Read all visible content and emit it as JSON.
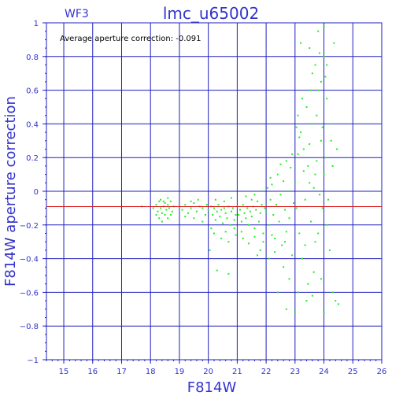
{
  "header": {
    "camera": "WF3",
    "dataset": "lmc_u65002"
  },
  "annotation": "Average aperture correction: -0.091",
  "colors": {
    "frame": "#1f1fbf",
    "points": "#22ee22",
    "mean_line": "#dd1111",
    "text": "#3333cc"
  },
  "chart_data": {
    "type": "scatter",
    "title": "lmc_u65002",
    "xlabel": "F814W",
    "ylabel": "F814W aperture correction",
    "xlim": [
      14.4,
      26
    ],
    "ylim": [
      -1,
      1
    ],
    "x_ticks": [
      15,
      16,
      17,
      18,
      19,
      20,
      21,
      22,
      23,
      24,
      25,
      26
    ],
    "y_ticks": [
      -1,
      -0.8,
      -0.6,
      -0.4,
      -0.2,
      0,
      0.2,
      0.4,
      0.6,
      0.8,
      1
    ],
    "y_tick_labels": [
      "−1",
      "−0.8",
      "−0.6",
      "−0.4",
      "−0.2",
      "0",
      "0.2",
      "0.4",
      "0.6",
      "0.8",
      "1"
    ],
    "grid": true,
    "average_correction": -0.091,
    "points": [
      [
        17.7,
        -0.09
      ],
      [
        18.1,
        -0.1
      ],
      [
        18.2,
        -0.08
      ],
      [
        18.25,
        -0.12
      ],
      [
        18.3,
        -0.06
      ],
      [
        18.35,
        -0.1
      ],
      [
        18.4,
        -0.13
      ],
      [
        18.45,
        -0.09
      ],
      [
        18.5,
        -0.07
      ],
      [
        18.55,
        -0.11
      ],
      [
        18.6,
        -0.08
      ],
      [
        18.65,
        -0.1
      ],
      [
        18.7,
        -0.06
      ],
      [
        18.75,
        -0.12
      ],
      [
        18.8,
        -0.09
      ],
      [
        18.3,
        -0.16
      ],
      [
        18.4,
        -0.18
      ],
      [
        18.5,
        -0.14
      ],
      [
        18.6,
        -0.16
      ],
      [
        18.35,
        -0.05
      ],
      [
        18.6,
        -0.04
      ],
      [
        18.2,
        -0.14
      ],
      [
        18.7,
        -0.14
      ],
      [
        18.45,
        -0.06
      ],
      [
        19.0,
        -0.09
      ],
      [
        19.1,
        -0.11
      ],
      [
        19.2,
        -0.08
      ],
      [
        19.3,
        -0.13
      ],
      [
        19.4,
        -0.1
      ],
      [
        19.5,
        -0.07
      ],
      [
        19.6,
        -0.12
      ],
      [
        19.7,
        -0.09
      ],
      [
        19.8,
        -0.1
      ],
      [
        19.9,
        -0.14
      ],
      [
        19.2,
        -0.15
      ],
      [
        19.5,
        -0.16
      ],
      [
        19.8,
        -0.18
      ],
      [
        19.4,
        -0.06
      ],
      [
        19.65,
        -0.05
      ],
      [
        19.95,
        -0.08
      ],
      [
        20.0,
        -0.11
      ],
      [
        20.1,
        -0.09
      ],
      [
        20.15,
        -0.14
      ],
      [
        20.2,
        -0.1
      ],
      [
        20.25,
        -0.17
      ],
      [
        20.3,
        -0.12
      ],
      [
        20.35,
        -0.08
      ],
      [
        20.4,
        -0.15
      ],
      [
        20.45,
        -0.11
      ],
      [
        20.5,
        -0.19
      ],
      [
        20.55,
        -0.1
      ],
      [
        20.6,
        -0.13
      ],
      [
        20.65,
        -0.16
      ],
      [
        20.7,
        -0.09
      ],
      [
        20.75,
        -0.2
      ],
      [
        20.8,
        -0.12
      ],
      [
        20.85,
        -0.1
      ],
      [
        20.9,
        -0.17
      ],
      [
        20.95,
        -0.14
      ],
      [
        20.25,
        -0.05
      ],
      [
        20.55,
        -0.06
      ],
      [
        20.8,
        -0.04
      ],
      [
        20.1,
        -0.22
      ],
      [
        20.6,
        -0.24
      ],
      [
        20.9,
        -0.22
      ],
      [
        20.05,
        -0.35
      ],
      [
        20.2,
        -0.25
      ],
      [
        20.45,
        -0.28
      ],
      [
        20.7,
        -0.3
      ],
      [
        20.95,
        -0.26
      ],
      [
        20.3,
        -0.47
      ],
      [
        20.7,
        -0.49
      ],
      [
        21.0,
        -0.09
      ],
      [
        21.05,
        -0.14
      ],
      [
        21.1,
        -0.11
      ],
      [
        21.15,
        -0.18
      ],
      [
        21.2,
        -0.08
      ],
      [
        21.25,
        -0.13
      ],
      [
        21.3,
        -0.16
      ],
      [
        21.35,
        -0.1
      ],
      [
        21.4,
        -0.2
      ],
      [
        21.45,
        -0.12
      ],
      [
        21.5,
        -0.15
      ],
      [
        21.55,
        -0.09
      ],
      [
        21.6,
        -0.22
      ],
      [
        21.65,
        -0.11
      ],
      [
        21.7,
        -0.06
      ],
      [
        21.75,
        -0.18
      ],
      [
        21.8,
        -0.13
      ],
      [
        21.85,
        -0.08
      ],
      [
        21.9,
        -0.25
      ],
      [
        21.95,
        -0.1
      ],
      [
        21.2,
        -0.28
      ],
      [
        21.4,
        -0.31
      ],
      [
        21.6,
        -0.27
      ],
      [
        21.8,
        -0.35
      ],
      [
        21.3,
        -0.03
      ],
      [
        21.6,
        -0.02
      ],
      [
        21.85,
        0.0
      ],
      [
        21.15,
        -0.24
      ],
      [
        21.7,
        -0.38
      ],
      [
        21.9,
        -0.3
      ],
      [
        21.5,
        -0.05
      ],
      [
        22.0,
        -0.12
      ],
      [
        22.05,
        0.02
      ],
      [
        22.1,
        -0.2
      ],
      [
        22.15,
        -0.05
      ],
      [
        22.2,
        0.04
      ],
      [
        22.25,
        -0.14
      ],
      [
        22.3,
        -0.28
      ],
      [
        22.35,
        -0.08
      ],
      [
        22.4,
        0.1
      ],
      [
        22.45,
        -0.18
      ],
      [
        22.5,
        -0.02
      ],
      [
        22.55,
        -0.32
      ],
      [
        22.6,
        0.06
      ],
      [
        22.65,
        -0.11
      ],
      [
        22.7,
        -0.24
      ],
      [
        22.75,
        0.0
      ],
      [
        22.8,
        -0.16
      ],
      [
        22.85,
        0.14
      ],
      [
        22.9,
        -0.38
      ],
      [
        22.95,
        -0.07
      ],
      [
        22.1,
        -0.4
      ],
      [
        22.3,
        -0.36
      ],
      [
        22.6,
        -0.45
      ],
      [
        22.8,
        -0.52
      ],
      [
        22.15,
        0.08
      ],
      [
        22.5,
        0.16
      ],
      [
        22.7,
        0.18
      ],
      [
        22.9,
        0.22
      ],
      [
        22.4,
        -0.6
      ],
      [
        22.7,
        -0.7
      ],
      [
        22.2,
        -0.26
      ],
      [
        22.65,
        -0.3
      ],
      [
        23.0,
        0.05
      ],
      [
        23.05,
        -0.1
      ],
      [
        23.1,
        0.22
      ],
      [
        23.15,
        -0.25
      ],
      [
        23.2,
        0.35
      ],
      [
        23.25,
        -0.4
      ],
      [
        23.3,
        0.12
      ],
      [
        23.35,
        -0.05
      ],
      [
        23.4,
        0.5
      ],
      [
        23.45,
        -0.55
      ],
      [
        23.5,
        0.28
      ],
      [
        23.55,
        -0.18
      ],
      [
        23.6,
        0.4
      ],
      [
        23.65,
        0.02
      ],
      [
        23.7,
        -0.3
      ],
      [
        23.75,
        0.18
      ],
      [
        23.8,
        0.6
      ],
      [
        23.85,
        -0.02
      ],
      [
        23.9,
        0.3
      ],
      [
        23.95,
        -0.1
      ],
      [
        23.2,
        0.88
      ],
      [
        23.5,
        0.85
      ],
      [
        23.7,
        0.75
      ],
      [
        23.8,
        0.95
      ],
      [
        23.6,
        0.7
      ],
      [
        23.85,
        0.82
      ],
      [
        23.3,
        0.25
      ],
      [
        23.1,
        0.45
      ],
      [
        23.4,
        -0.65
      ],
      [
        23.6,
        -0.62
      ],
      [
        23.0,
        -0.72
      ],
      [
        23.9,
        -0.52
      ],
      [
        23.25,
        0.55
      ],
      [
        23.55,
        0.6
      ],
      [
        23.15,
        0.32
      ],
      [
        23.45,
        0.15
      ],
      [
        23.7,
        0.1
      ],
      [
        23.05,
        0.38
      ],
      [
        23.35,
        -0.32
      ],
      [
        23.65,
        -0.48
      ],
      [
        23.75,
        0.45
      ],
      [
        23.9,
        0.65
      ],
      [
        23.1,
        -0.6
      ],
      [
        23.5,
        0.05
      ],
      [
        23.8,
        -0.25
      ],
      [
        23.95,
        0.38
      ],
      [
        24.0,
        0.8
      ],
      [
        24.05,
        0.68
      ],
      [
        24.1,
        0.55
      ],
      [
        24.2,
        0.4
      ],
      [
        24.0,
        0.1
      ],
      [
        24.1,
        -0.2
      ],
      [
        24.3,
        -0.6
      ],
      [
        24.4,
        -0.65
      ],
      [
        24.05,
        0.2
      ],
      [
        24.15,
        -0.05
      ],
      [
        24.25,
        0.3
      ],
      [
        24.0,
        0.98
      ],
      [
        24.35,
        0.88
      ],
      [
        24.45,
        0.25
      ],
      [
        24.1,
        0.75
      ],
      [
        24.2,
        -0.35
      ],
      [
        24.5,
        -0.67
      ],
      [
        24.0,
        -0.72
      ],
      [
        24.3,
        0.15
      ]
    ]
  }
}
